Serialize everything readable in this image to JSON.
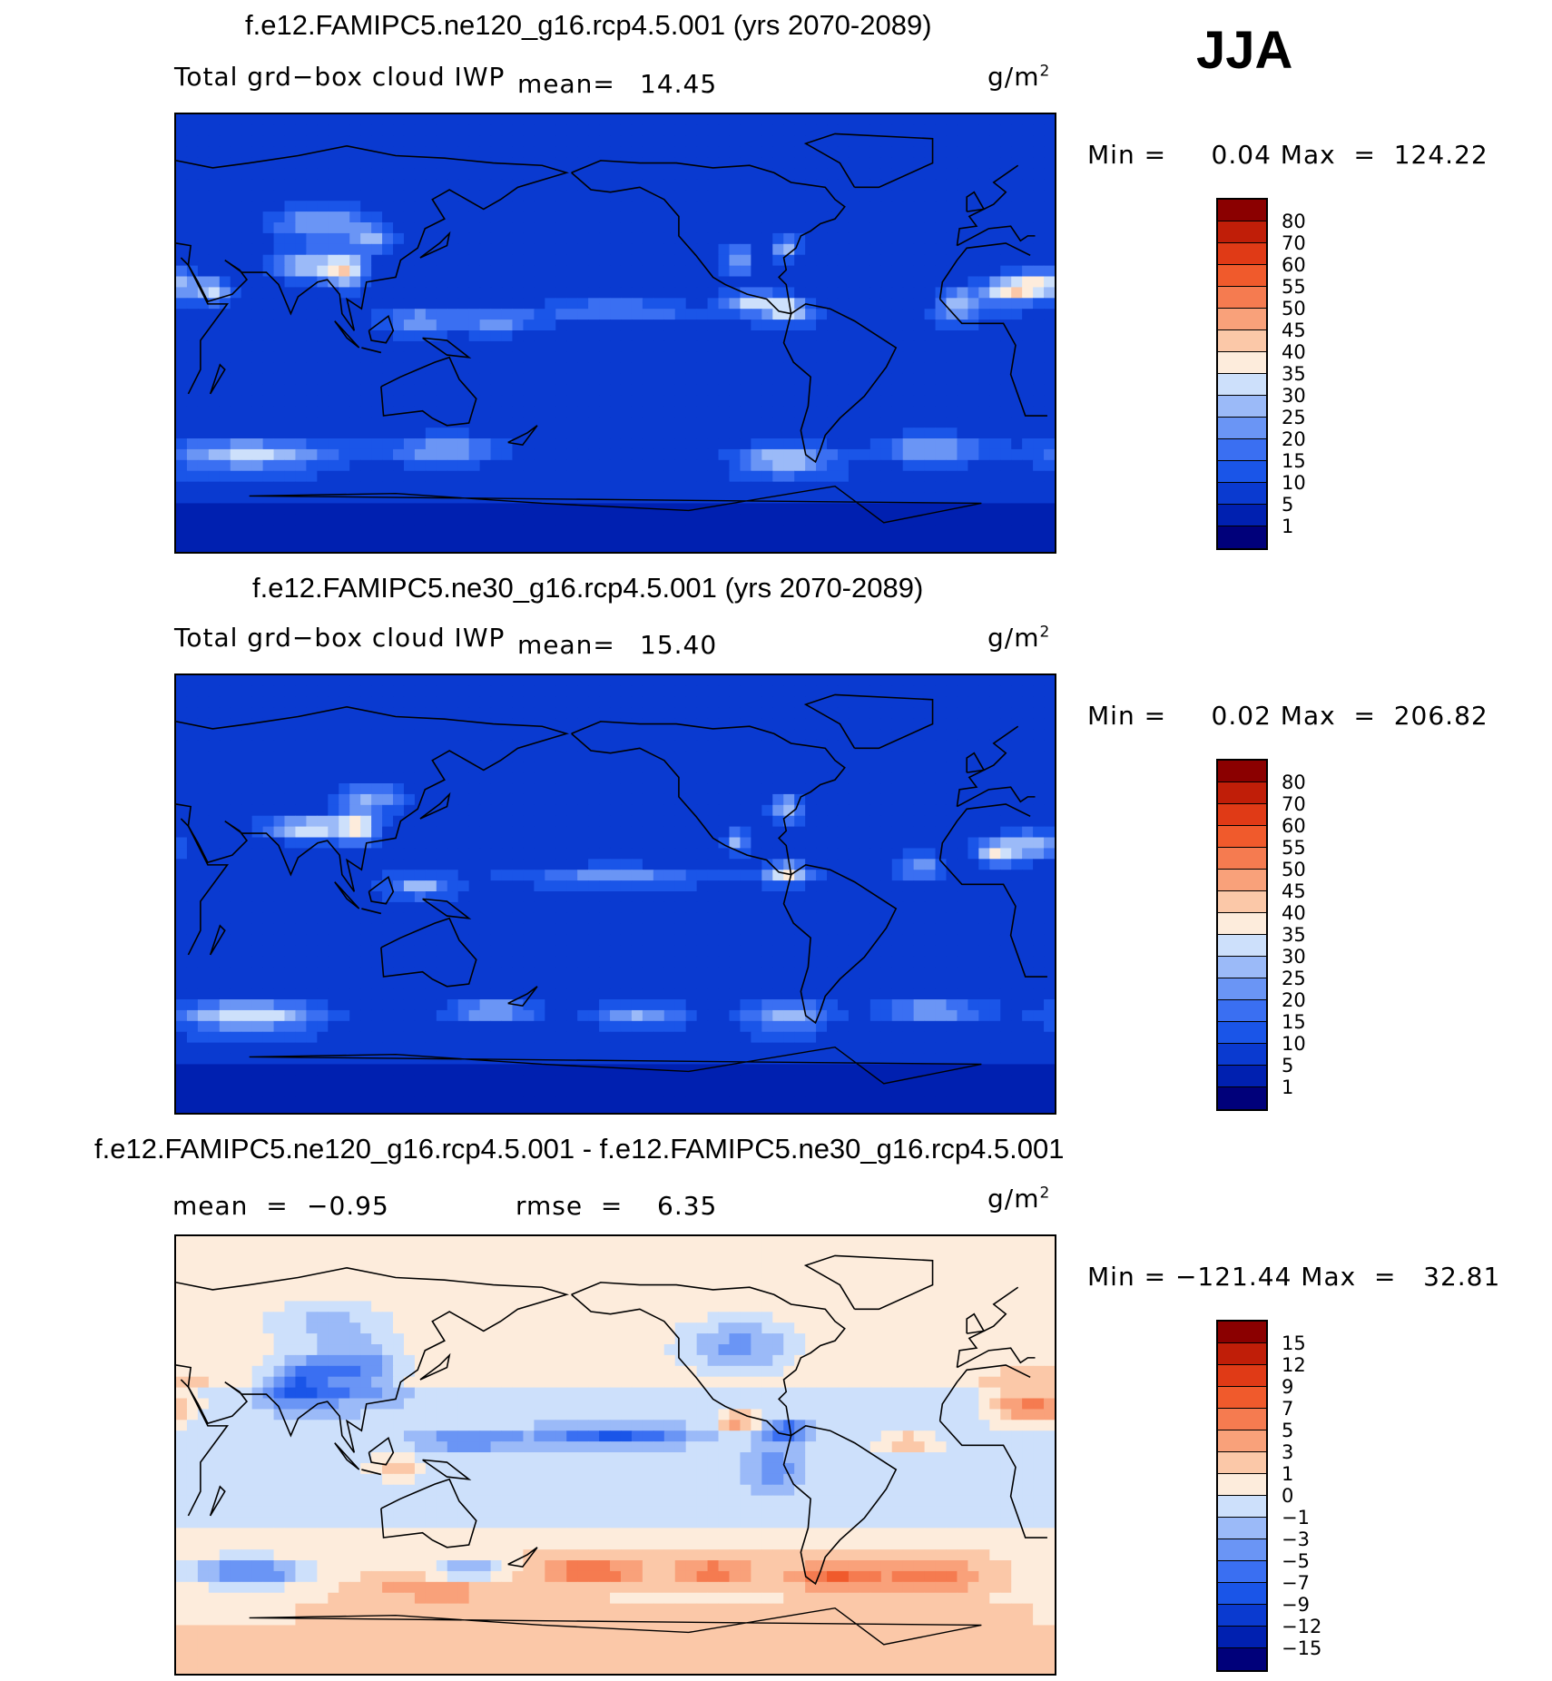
{
  "season": "JJA",
  "palettes": {
    "abs": [
      "#00007a",
      "#0020b0",
      "#0a3ad0",
      "#1a55e8",
      "#3a6ff2",
      "#6a95f5",
      "#9bbaf8",
      "#cde0fb",
      "#fdecdc",
      "#fbc8a8",
      "#f9a17a",
      "#f57b50",
      "#f05a2c",
      "#e03a16",
      "#c01e08",
      "#8b0000"
    ],
    "diff": [
      "#00007a",
      "#0020b0",
      "#0a3ad0",
      "#1a55e8",
      "#3a6ff2",
      "#6a95f5",
      "#9bbaf8",
      "#cde0fb",
      "#fdecdc",
      "#fbc8a8",
      "#f9a17a",
      "#f57b50",
      "#f05a2c",
      "#e03a16",
      "#c01e08",
      "#8b0000"
    ]
  },
  "chart_data": [
    {
      "type": "heatmap",
      "id": "panel1",
      "title": "f.e12.FAMIPC5.ne120_g16.rcp4.5.001 (yrs 2070-2089)",
      "variable": "Total grd−box cloud IWP",
      "mean_label": "mean=",
      "mean": "14.45",
      "units": "g/m",
      "units_sup": "2",
      "stats": "Min =     0.04 Max  =  124.22",
      "colorbar_levels": [
        "80",
        "70",
        "60",
        "55",
        "50",
        "45",
        "40",
        "35",
        "30",
        "25",
        "20",
        "15",
        "10",
        "5",
        "1"
      ],
      "palette": "abs"
    },
    {
      "type": "heatmap",
      "id": "panel2",
      "title": "f.e12.FAMIPC5.ne30_g16.rcp4.5.001 (yrs 2070-2089)",
      "variable": "Total grd−box cloud IWP",
      "mean_label": "mean=",
      "mean": "15.40",
      "units": "g/m",
      "units_sup": "2",
      "stats": "Min =     0.02 Max  =  206.82",
      "colorbar_levels": [
        "80",
        "70",
        "60",
        "55",
        "50",
        "45",
        "40",
        "35",
        "30",
        "25",
        "20",
        "15",
        "10",
        "5",
        "1"
      ],
      "palette": "abs"
    },
    {
      "type": "heatmap",
      "id": "panel3",
      "title": "f.e12.FAMIPC5.ne120_g16.rcp4.5.001 - f.e12.FAMIPC5.ne30_g16.rcp4.5.001",
      "mean_label": "mean  =",
      "mean": "−0.95",
      "rmse_label": "rmse  =",
      "rmse": "6.35",
      "units": "g/m",
      "units_sup": "2",
      "stats": "Min = −121.44 Max  =   32.81",
      "colorbar_levels": [
        "15",
        "12",
        "9",
        "7",
        "5",
        "3",
        "1",
        "0",
        "−1",
        "−3",
        "−5",
        "−7",
        "−9",
        "−12",
        "−15"
      ],
      "palette": "diff"
    }
  ]
}
